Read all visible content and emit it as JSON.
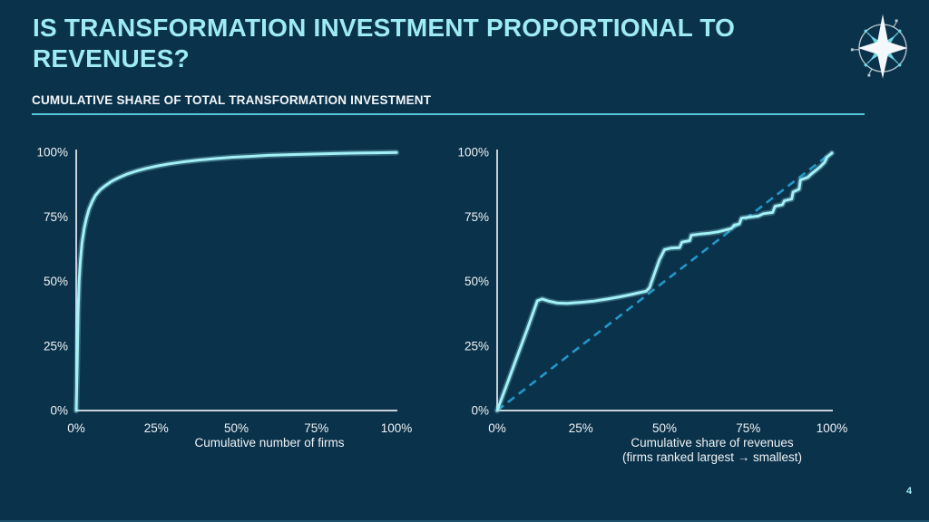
{
  "page": {
    "title": "IS TRANSFORMATION INVESTMENT PROPORTIONAL TO REVENUES?",
    "section_header": "CUMULATIVE SHARE OF TOTAL TRANSFORMATION INVESTMENT",
    "page_number": "4",
    "logo_icon": "compass-star-icon",
    "colors": {
      "background": "#0b324b",
      "title": "#9febf3",
      "header_text": "#f2f7f9",
      "header_underline": "#56c7d9",
      "axis": "#c7d1d7",
      "tick_text": "#eef3f5",
      "curve": "#a3f1f7",
      "reference_dashed": "#2198c8",
      "page_number": "#9febf3"
    }
  },
  "chart_data": [
    {
      "type": "line",
      "title": "",
      "xlabel_lines": [
        "Cumulative number of firms"
      ],
      "ylabel": "",
      "x_ticks": [
        "0%",
        "25%",
        "50%",
        "75%",
        "100%"
      ],
      "y_ticks": [
        "0%",
        "25%",
        "50%",
        "75%",
        "100%"
      ],
      "xlim": [
        0,
        100
      ],
      "ylim": [
        0,
        100
      ],
      "grid": false,
      "legend": "none",
      "series": [
        {
          "style": "solid",
          "color": "#a3f1f7",
          "points": [
            [
              0,
              0
            ],
            [
              0.3,
              18
            ],
            [
              0.6,
              38
            ],
            [
              0.9,
              50
            ],
            [
              1.3,
              58
            ],
            [
              1.8,
              65
            ],
            [
              2.5,
              70.5
            ],
            [
              3.2,
              74.5
            ],
            [
              4,
              78
            ],
            [
              5,
              81
            ],
            [
              6,
              83.3
            ],
            [
              7.5,
              85.5
            ],
            [
              9,
              87
            ],
            [
              11,
              88.7
            ],
            [
              13,
              90
            ],
            [
              16,
              91.6
            ],
            [
              19,
              92.8
            ],
            [
              22,
              93.8
            ],
            [
              25,
              94.6
            ],
            [
              29,
              95.5
            ],
            [
              33,
              96.2
            ],
            [
              38,
              96.9
            ],
            [
              43,
              97.5
            ],
            [
              48,
              98
            ],
            [
              54,
              98.4
            ],
            [
              60,
              98.8
            ],
            [
              67,
              99.1
            ],
            [
              74,
              99.3
            ],
            [
              81,
              99.5
            ],
            [
              88,
              99.7
            ],
            [
              94,
              99.8
            ],
            [
              100,
              99.9
            ]
          ]
        }
      ]
    },
    {
      "type": "line",
      "title": "",
      "xlabel_lines": [
        "Cumulative share of revenues",
        "(firms ranked largest → smallest)"
      ],
      "ylabel": "",
      "x_ticks": [
        "0%",
        "25%",
        "50%",
        "75%",
        "100%"
      ],
      "y_ticks": [
        "0%",
        "25%",
        "50%",
        "75%",
        "100%"
      ],
      "xlim": [
        0,
        100
      ],
      "ylim": [
        0,
        100
      ],
      "grid": false,
      "legend": "none",
      "series": [
        {
          "style": "dashed",
          "color": "#2198c8",
          "points": [
            [
              0,
              0
            ],
            [
              100,
              100
            ]
          ]
        },
        {
          "style": "solid",
          "color": "#a3f1f7",
          "points": [
            [
              0,
              0
            ],
            [
              3,
              10.5
            ],
            [
              6,
              21
            ],
            [
              9,
              31.5
            ],
            [
              12,
              42.5
            ],
            [
              13.5,
              43.2
            ],
            [
              15.5,
              42.3
            ],
            [
              18,
              41.6
            ],
            [
              21,
              41.5
            ],
            [
              25,
              41.9
            ],
            [
              29,
              42.4
            ],
            [
              33,
              43.2
            ],
            [
              36.5,
              44
            ],
            [
              40,
              44.9
            ],
            [
              43,
              45.8
            ],
            [
              44.5,
              46.2
            ],
            [
              45.5,
              47.5
            ],
            [
              47,
              53
            ],
            [
              48.5,
              58.5
            ],
            [
              50,
              62.3
            ],
            [
              52,
              62.9
            ],
            [
              54.5,
              63.1
            ],
            [
              55.2,
              65.2
            ],
            [
              57.5,
              65.8
            ],
            [
              58,
              67.9
            ],
            [
              60.5,
              68.3
            ],
            [
              63.5,
              68.7
            ],
            [
              66,
              69.2
            ],
            [
              68.5,
              70
            ],
            [
              70,
              70.5
            ],
            [
              70.8,
              71.8
            ],
            [
              72.3,
              72.2
            ],
            [
              73,
              74.5
            ],
            [
              75.5,
              74.9
            ],
            [
              78,
              75.3
            ],
            [
              79.5,
              76.2
            ],
            [
              82.3,
              76.7
            ],
            [
              83,
              79.1
            ],
            [
              85.2,
              79.7
            ],
            [
              85.8,
              81.2
            ],
            [
              88,
              81.9
            ],
            [
              88.4,
              84.6
            ],
            [
              90.2,
              85.7
            ],
            [
              90.6,
              89.3
            ],
            [
              92.8,
              90.3
            ],
            [
              94,
              91.8
            ],
            [
              95.2,
              93
            ],
            [
              96.5,
              94.4
            ],
            [
              97.8,
              96.1
            ],
            [
              98.6,
              98.2
            ],
            [
              100,
              99.7
            ]
          ]
        }
      ]
    }
  ]
}
